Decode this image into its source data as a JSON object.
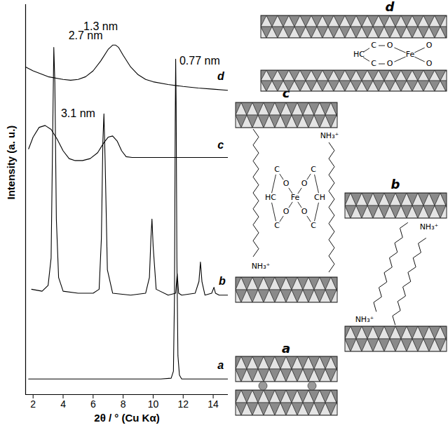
{
  "chart_data": {
    "type": "line",
    "xlabel": "2θ / ° (Cu Kα)",
    "ylabel": "Intensity (a. u.)",
    "xlim": [
      1.5,
      15
    ],
    "xticks": [
      2,
      4,
      6,
      8,
      10,
      12,
      14
    ],
    "ylim": [
      0,
      100
    ],
    "tick_labels": "x",
    "grid": false,
    "series": [
      {
        "name": "a",
        "color": "#000000",
        "label_at": [
          14.5,
          7.5
        ],
        "x": [
          1.7,
          3,
          5,
          7,
          9,
          10.5,
          11.2,
          11.35,
          11.42,
          11.47,
          11.5,
          11.53,
          11.58,
          11.65,
          11.75,
          11.9,
          13,
          15
        ],
        "values": [
          4,
          4,
          4,
          4,
          4,
          4,
          4.2,
          6,
          25,
          70,
          86,
          75,
          35,
          10,
          5,
          4,
          4,
          4
        ]
      },
      {
        "name": "b",
        "color": "#000000",
        "label_at": [
          14.6,
          29
        ],
        "x": [
          1.9,
          2.6,
          3.0,
          3.2,
          3.3,
          3.38,
          3.45,
          3.55,
          3.7,
          4.0,
          5,
          6.0,
          6.4,
          6.55,
          6.65,
          6.72,
          6.8,
          6.95,
          7.3,
          8.5,
          9.5,
          9.75,
          9.85,
          9.92,
          10.0,
          10.2,
          11,
          11.5,
          11.6,
          11.7,
          11.9,
          12.8,
          13.05,
          13.15,
          13.25,
          13.45,
          13.9,
          14.05,
          14.15,
          14.4,
          15
        ],
        "values": [
          27,
          26.5,
          28,
          35,
          65,
          89,
          80,
          45,
          30,
          26.5,
          26,
          26,
          27,
          40,
          65,
          72,
          60,
          32,
          26,
          25.5,
          26,
          30,
          40,
          45,
          38,
          27,
          25.5,
          26,
          31,
          26,
          25.5,
          26,
          29,
          34,
          29,
          25.5,
          26,
          27.5,
          26,
          25.5,
          25.5
        ]
      },
      {
        "name": "c",
        "color": "#000000",
        "label_at": [
          14.5,
          64
        ],
        "x": [
          1.7,
          2.0,
          2.4,
          2.8,
          3.2,
          3.6,
          4.0,
          4.4,
          4.8,
          5.3,
          5.8,
          6.3,
          6.7,
          7.0,
          7.3,
          7.6,
          7.9,
          8.2,
          8.6,
          9.5,
          11,
          13,
          15
        ],
        "values": [
          63,
          66,
          68.5,
          69,
          68,
          65.5,
          62.5,
          60.5,
          60,
          60,
          60.5,
          62,
          64.5,
          66,
          66.3,
          65,
          62.5,
          61,
          60.8,
          60.8,
          60.8,
          60.8,
          60.8
        ]
      },
      {
        "name": "d",
        "color": "#000000",
        "label_at": [
          14.5,
          81.5
        ],
        "x": [
          1.5,
          2,
          3,
          4,
          4.5,
          5,
          5.5,
          6,
          6.5,
          7,
          7.3,
          7.5,
          7.7,
          8,
          8.5,
          9,
          9.5,
          10,
          11,
          12,
          13,
          14,
          15
        ],
        "values": [
          84,
          83,
          81.5,
          80.8,
          80.6,
          80.8,
          81.5,
          83,
          85.5,
          88.5,
          89.6,
          89.6,
          89,
          87,
          84,
          82,
          80.8,
          80.2,
          79.5,
          79,
          78.6,
          78.3,
          78
        ]
      }
    ],
    "annotations": [
      {
        "text": "1.3 nm",
        "x": 6.5,
        "y": 94.3
      },
      {
        "text": "3.1 nm",
        "x": 5.0,
        "y": 72
      },
      {
        "text": "2.7 nm",
        "x": 5.5,
        "y": 92
      },
      {
        "text": "0.77 nm",
        "x": 13.1,
        "y": 85.6
      }
    ]
  },
  "diagram": {
    "panels": [
      {
        "label": "a"
      },
      {
        "label": "b",
        "texts": [
          "NH₃⁺",
          "NH₃⁺"
        ]
      },
      {
        "label": "c",
        "texts": [
          "C",
          "O",
          "O",
          "C",
          "HC",
          "Fe",
          "CH",
          "O",
          "O",
          "C",
          "C",
          "NH₃⁺",
          "NH₃⁺"
        ]
      },
      {
        "label": "d",
        "texts": [
          "C",
          "O",
          "HC",
          "C",
          "O",
          "Fe",
          "O",
          "O"
        ]
      }
    ]
  }
}
